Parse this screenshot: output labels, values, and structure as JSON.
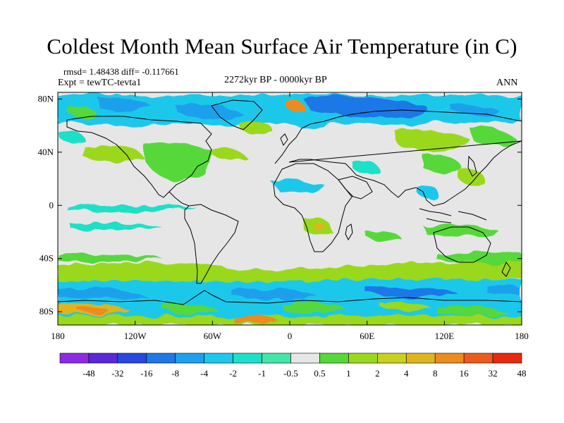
{
  "title": "Coldest Month Mean Surface Air Temperature (in C)",
  "stats": "rmsd= 1.48438 diff= -0.117661",
  "experiment": "Expt = tewTC-tevta1",
  "period": "2272kyr BP - 0000kyr BP",
  "season": "ANN",
  "y_axis": {
    "tick_labels": [
      "80N",
      "40N",
      "0",
      "40S",
      "80S"
    ],
    "tick_values": [
      80,
      40,
      0,
      -40,
      -80
    ]
  },
  "x_axis": {
    "tick_labels": [
      "180",
      "120W",
      "60W",
      "0",
      "60E",
      "120E",
      "180"
    ],
    "tick_values": [
      -180,
      -120,
      -60,
      0,
      60,
      120,
      180
    ]
  },
  "legend": {
    "labels": [
      "-48",
      "-32",
      "-16",
      "-8",
      "-4",
      "-2",
      "-1",
      "-0.5",
      "0.5",
      "1",
      "2",
      "4",
      "8",
      "16",
      "32",
      "48"
    ],
    "colors": [
      "#8c2be2",
      "#5a28d8",
      "#2848e0",
      "#1e78e6",
      "#1ea0ec",
      "#1ec8ea",
      "#1ee0c8",
      "#44e6a8",
      "#e6e6e6",
      "#56d83a",
      "#9ad81e",
      "#c8d21e",
      "#e0b41e",
      "#ec8c1e",
      "#ec5a1e",
      "#e62a10"
    ]
  },
  "map_colors": {
    "ocean_background": "#e6e6e6",
    "coastline": "#000000"
  }
}
